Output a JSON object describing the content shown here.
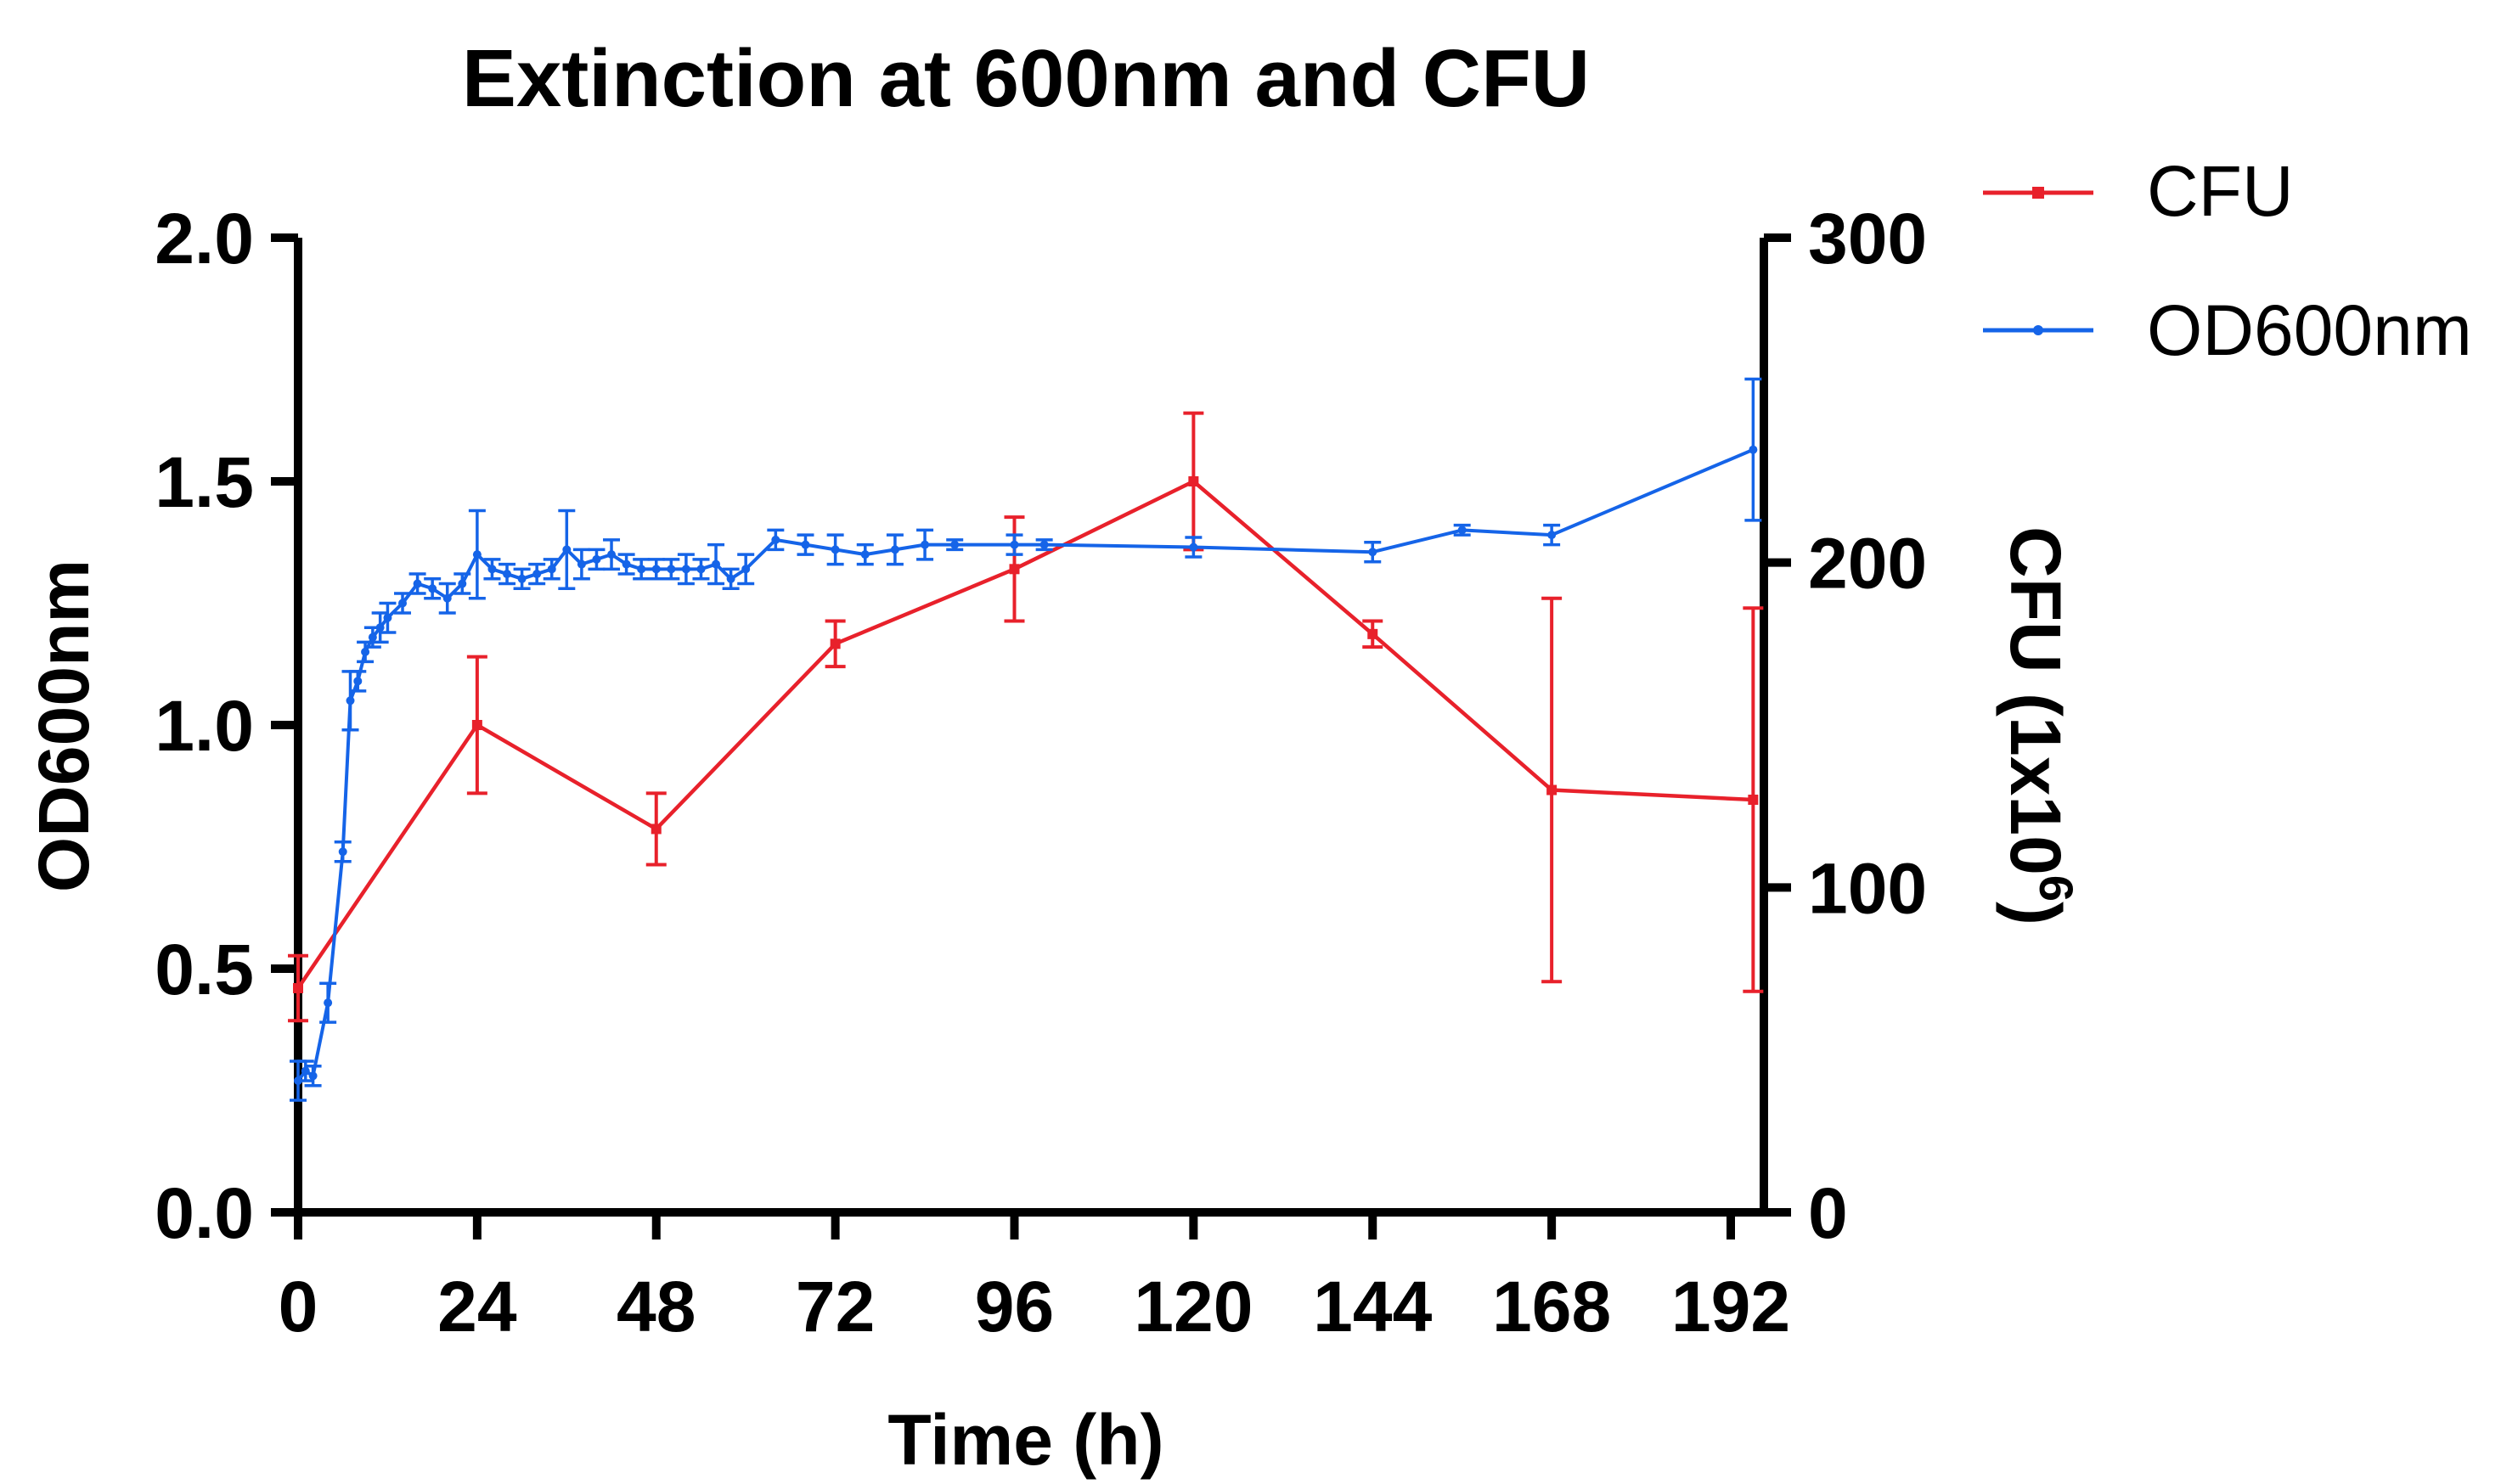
{
  "chart_data": {
    "type": "line",
    "title": "Extinction at 600nm and CFU",
    "xlabel": "Time (h)",
    "ylabel_left": "OD600nm",
    "ylabel_right": {
      "main": "CFU (1x10",
      "superscript": "6",
      "close": ")"
    },
    "xlim": [
      0,
      197
    ],
    "ylim_left": [
      0,
      2.0
    ],
    "ylim_right": [
      0,
      300
    ],
    "x_ticks": [
      0,
      24,
      48,
      72,
      96,
      120,
      144,
      168,
      192
    ],
    "x_tick_labels": [
      "0",
      "24",
      "48",
      "72",
      "96",
      "120",
      "144",
      "168",
      "192"
    ],
    "y_left_ticks": [
      0,
      0.5,
      1.0,
      1.5,
      2.0
    ],
    "y_left_tick_labels": [
      "0.0",
      "0.5",
      "1.0",
      "1.5",
      "2.0"
    ],
    "y_right_ticks": [
      0,
      100,
      200,
      300
    ],
    "y_right_tick_labels": [
      "0",
      "100",
      "200",
      "300"
    ],
    "grid": false,
    "legend_position": "top-right",
    "series": [
      {
        "name": "CFU",
        "axis": "right",
        "color": "#e8212b",
        "marker": "square",
        "x": [
          0,
          24,
          48,
          72,
          96,
          120,
          144,
          168,
          195
        ],
        "y": [
          69,
          150,
          118,
          175,
          198,
          225,
          178,
          130,
          127
        ],
        "err": [
          10,
          21,
          11,
          7,
          16,
          21,
          4,
          59,
          59
        ]
      },
      {
        "name": "OD600nm",
        "axis": "left",
        "color": "#1564e8",
        "marker": "circle",
        "x": [
          0,
          1,
          2,
          4,
          6,
          7,
          8,
          9,
          10,
          11,
          12,
          14,
          16,
          18,
          20,
          22,
          24,
          26,
          28,
          30,
          32,
          34,
          36,
          38,
          40,
          42,
          44,
          46,
          48,
          50,
          52,
          54,
          56,
          58,
          60,
          64,
          68,
          72,
          76,
          80,
          84,
          88,
          96,
          100,
          120,
          144,
          156,
          168,
          195
        ],
        "y": [
          0.27,
          0.29,
          0.28,
          0.43,
          0.74,
          1.05,
          1.09,
          1.15,
          1.18,
          1.2,
          1.22,
          1.25,
          1.29,
          1.28,
          1.26,
          1.29,
          1.35,
          1.32,
          1.31,
          1.3,
          1.31,
          1.32,
          1.36,
          1.33,
          1.34,
          1.35,
          1.33,
          1.32,
          1.32,
          1.32,
          1.32,
          1.32,
          1.33,
          1.3,
          1.32,
          1.38,
          1.37,
          1.36,
          1.35,
          1.36,
          1.37,
          1.37,
          1.37,
          1.37,
          1.365,
          1.355,
          1.4,
          1.39,
          1.565
        ],
        "err": [
          0.04,
          0.02,
          0.02,
          0.04,
          0.02,
          0.06,
          0.02,
          0.02,
          0.02,
          0.03,
          0.03,
          0.02,
          0.02,
          0.02,
          0.03,
          0.02,
          0.09,
          0.02,
          0.02,
          0.02,
          0.02,
          0.02,
          0.08,
          0.03,
          0.02,
          0.03,
          0.02,
          0.02,
          0.02,
          0.02,
          0.03,
          0.02,
          0.04,
          0.02,
          0.03,
          0.02,
          0.02,
          0.03,
          0.02,
          0.03,
          0.03,
          0.01,
          0.02,
          0.01,
          0.02,
          0.02,
          0.01,
          0.02,
          0.145
        ]
      }
    ]
  }
}
